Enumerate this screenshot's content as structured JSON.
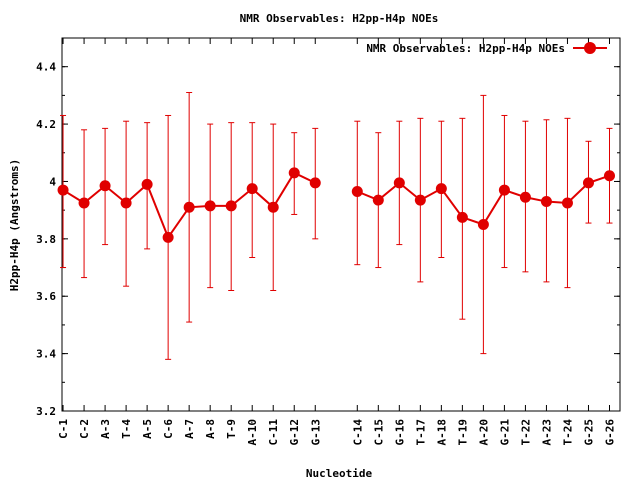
{
  "chart_data": {
    "type": "line",
    "title": "NMR Observables: H2pp-H4p NOEs",
    "xlabel": "Nucleotide",
    "ylabel": "H2pp-H4p (Angstroms)",
    "ylim": [
      3.2,
      4.5
    ],
    "yticks": [
      "3.2",
      "3.4",
      "3.6",
      "3.8",
      "4",
      "4.2",
      "4.4"
    ],
    "grid": false,
    "legend_position": "top-right",
    "color": "#e00000",
    "series": [
      {
        "name": "NMR Observables: H2pp-H4p NOEs",
        "segments": [
          [
            {
              "label": "C-1",
              "x": 1,
              "y": 3.97,
              "lo": 3.7,
              "hi": 4.23
            },
            {
              "label": "C-2",
              "x": 2,
              "y": 3.925,
              "lo": 3.665,
              "hi": 4.18
            },
            {
              "label": "A-3",
              "x": 3,
              "y": 3.985,
              "lo": 3.78,
              "hi": 4.185
            },
            {
              "label": "T-4",
              "x": 4,
              "y": 3.925,
              "lo": 3.635,
              "hi": 4.21
            },
            {
              "label": "A-5",
              "x": 5,
              "y": 3.99,
              "lo": 3.765,
              "hi": 4.205
            },
            {
              "label": "C-6",
              "x": 6,
              "y": 3.805,
              "lo": 3.38,
              "hi": 4.23
            },
            {
              "label": "A-7",
              "x": 7,
              "y": 3.91,
              "lo": 3.51,
              "hi": 4.31
            },
            {
              "label": "A-8",
              "x": 8,
              "y": 3.915,
              "lo": 3.63,
              "hi": 4.2
            },
            {
              "label": "T-9",
              "x": 9,
              "y": 3.915,
              "lo": 3.62,
              "hi": 4.205
            },
            {
              "label": "A-10",
              "x": 10,
              "y": 3.975,
              "lo": 3.735,
              "hi": 4.205
            },
            {
              "label": "C-11",
              "x": 11,
              "y": 3.91,
              "lo": 3.62,
              "hi": 4.2
            },
            {
              "label": "G-12",
              "x": 12,
              "y": 4.03,
              "lo": 3.885,
              "hi": 4.17
            },
            {
              "label": "G-13",
              "x": 13,
              "y": 3.995,
              "lo": 3.8,
              "hi": 4.185
            }
          ],
          [
            {
              "label": "C-14",
              "x": 15,
              "y": 3.965,
              "lo": 3.71,
              "hi": 4.21
            },
            {
              "label": "C-15",
              "x": 16,
              "y": 3.935,
              "lo": 3.7,
              "hi": 4.17
            },
            {
              "label": "G-16",
              "x": 17,
              "y": 3.995,
              "lo": 3.78,
              "hi": 4.21
            },
            {
              "label": "T-17",
              "x": 18,
              "y": 3.935,
              "lo": 3.65,
              "hi": 4.22
            },
            {
              "label": "A-18",
              "x": 19,
              "y": 3.975,
              "lo": 3.735,
              "hi": 4.21
            },
            {
              "label": "T-19",
              "x": 20,
              "y": 3.875,
              "lo": 3.52,
              "hi": 4.22
            },
            {
              "label": "A-20",
              "x": 21,
              "y": 3.85,
              "lo": 3.4,
              "hi": 4.3
            },
            {
              "label": "G-21",
              "x": 22,
              "y": 3.97,
              "lo": 3.7,
              "hi": 4.23
            },
            {
              "label": "T-22",
              "x": 23,
              "y": 3.945,
              "lo": 3.685,
              "hi": 4.21
            },
            {
              "label": "A-23",
              "x": 24,
              "y": 3.93,
              "lo": 3.65,
              "hi": 4.215
            },
            {
              "label": "T-24",
              "x": 25,
              "y": 3.925,
              "lo": 3.63,
              "hi": 4.22
            },
            {
              "label": "G-25",
              "x": 26,
              "y": 3.995,
              "lo": 3.855,
              "hi": 4.14
            },
            {
              "label": "G-26",
              "x": 27,
              "y": 4.02,
              "lo": 3.855,
              "hi": 4.185
            }
          ]
        ]
      }
    ]
  }
}
